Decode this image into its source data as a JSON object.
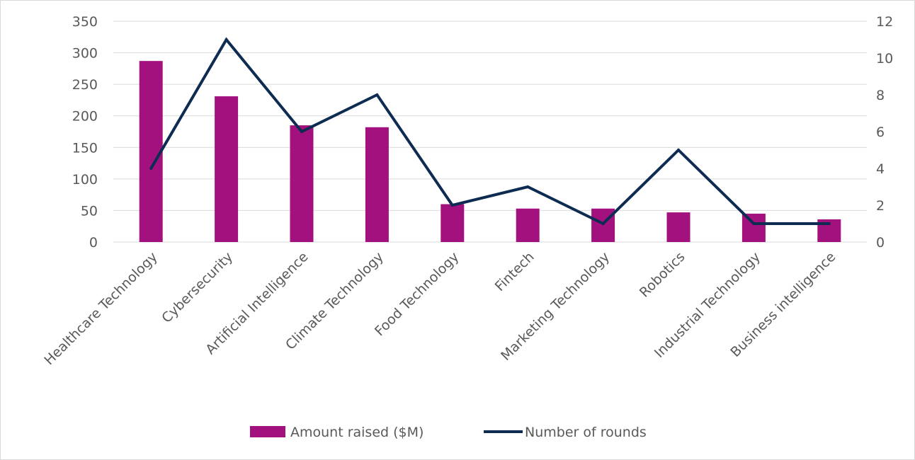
{
  "chart_data": {
    "type": "bar",
    "categories": [
      "Healthcare Technology",
      "Cybersecurity",
      "Artificial Intelligence",
      "Climate Technology",
      "Food Technology",
      "Fintech",
      "Marketing Technology",
      "Robotics",
      "Industrial Technology",
      "Business intelligence"
    ],
    "series": [
      {
        "name": "Amount raised ($M)",
        "type": "bar",
        "axis": "left",
        "color": "#A3117F",
        "values": [
          287,
          231,
          185,
          182,
          60,
          53,
          53,
          47,
          45,
          36
        ]
      },
      {
        "name": "Number of rounds",
        "type": "line",
        "axis": "right",
        "color": "#0E2B52",
        "values": [
          4,
          11,
          6,
          8,
          2,
          3,
          1,
          5,
          1,
          1
        ]
      }
    ],
    "y_left": {
      "min": 0,
      "max": 350,
      "step": 50,
      "ticks": [
        "0",
        "50",
        "100",
        "150",
        "200",
        "250",
        "300",
        "350"
      ]
    },
    "y_right": {
      "min": 0,
      "max": 12,
      "step": 2,
      "ticks": [
        "0",
        "2",
        "4",
        "6",
        "8",
        "10",
        "12"
      ]
    },
    "grid": true,
    "legend_position": "bottom"
  }
}
